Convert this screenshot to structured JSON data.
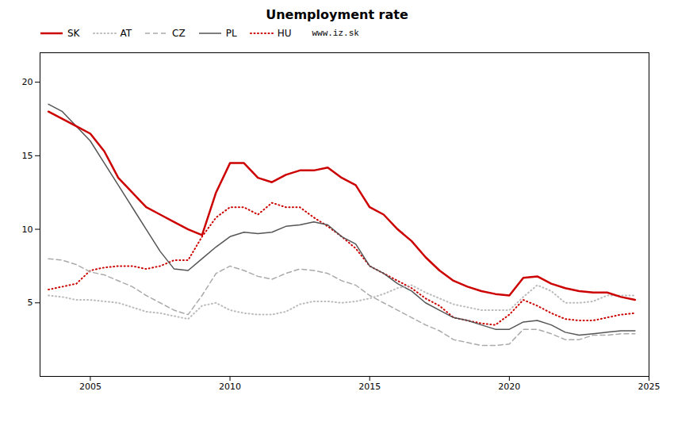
{
  "chart_data": {
    "type": "line",
    "title": "Unemployment rate",
    "annotations": [
      "www.iz.sk"
    ],
    "x": [
      2003.5,
      2004.0,
      2004.5,
      2005.0,
      2005.5,
      2006.0,
      2006.5,
      2007.0,
      2007.5,
      2008.0,
      2008.5,
      2009.0,
      2009.5,
      2010.0,
      2010.5,
      2011.0,
      2011.5,
      2012.0,
      2012.5,
      2013.0,
      2013.5,
      2014.0,
      2014.5,
      2015.0,
      2015.5,
      2016.0,
      2016.5,
      2017.0,
      2017.5,
      2018.0,
      2018.5,
      2019.0,
      2019.5,
      2020.0,
      2020.5,
      2021.0,
      2021.5,
      2022.0,
      2022.5,
      2023.0,
      2023.5,
      2024.0,
      2024.5
    ],
    "series": [
      {
        "name": "SK",
        "color": "#cc0000",
        "line_style": "solid",
        "values": [
          18.0,
          17.5,
          17.0,
          16.5,
          15.3,
          13.5,
          12.5,
          11.5,
          11.0,
          10.5,
          10.0,
          9.6,
          12.5,
          14.5,
          14.5,
          13.5,
          13.2,
          13.7,
          14.0,
          14.0,
          14.2,
          13.5,
          13.0,
          11.5,
          11.0,
          10.0,
          9.2,
          8.1,
          7.2,
          6.5,
          6.1,
          5.8,
          5.6,
          5.5,
          6.7,
          6.8,
          6.3,
          6.0,
          5.8,
          5.7,
          5.7,
          5.4,
          5.2
        ]
      },
      {
        "name": "AT",
        "color": "#bbbbbb",
        "line_style": "dotted",
        "values": [
          5.5,
          5.4,
          5.2,
          5.2,
          5.1,
          5.0,
          4.7,
          4.4,
          4.3,
          4.1,
          3.9,
          4.8,
          5.0,
          4.5,
          4.3,
          4.2,
          4.2,
          4.4,
          4.9,
          5.1,
          5.1,
          5.0,
          5.1,
          5.3,
          5.6,
          6.0,
          6.2,
          5.7,
          5.3,
          4.9,
          4.7,
          4.5,
          4.5,
          4.5,
          5.4,
          6.2,
          5.8,
          5.0,
          5.0,
          5.1,
          5.5,
          5.5,
          5.5
        ]
      },
      {
        "name": "CZ",
        "color": "#aaaaaa",
        "line_style": "dashed",
        "values": [
          8.0,
          7.9,
          7.6,
          7.1,
          6.9,
          6.5,
          6.1,
          5.5,
          5.0,
          4.5,
          4.2,
          5.5,
          7.0,
          7.5,
          7.2,
          6.8,
          6.6,
          7.0,
          7.3,
          7.2,
          7.0,
          6.5,
          6.2,
          5.5,
          5.0,
          4.5,
          4.0,
          3.5,
          3.1,
          2.5,
          2.3,
          2.1,
          2.1,
          2.2,
          3.2,
          3.2,
          2.9,
          2.5,
          2.5,
          2.8,
          2.8,
          2.9,
          2.9
        ]
      },
      {
        "name": "PL",
        "color": "#555555",
        "line_style": "solid",
        "values": [
          18.5,
          18.0,
          17.0,
          16.0,
          14.5,
          13.0,
          11.5,
          10.0,
          8.5,
          7.3,
          7.2,
          8.0,
          8.8,
          9.5,
          9.8,
          9.7,
          9.8,
          10.2,
          10.3,
          10.5,
          10.3,
          9.5,
          9.0,
          7.5,
          7.0,
          6.3,
          5.8,
          5.0,
          4.5,
          4.0,
          3.8,
          3.5,
          3.2,
          3.2,
          3.7,
          3.8,
          3.5,
          3.0,
          2.8,
          2.9,
          3.0,
          3.1,
          3.1
        ]
      },
      {
        "name": "HU",
        "color": "#cc0000",
        "line_style": "dotted",
        "values": [
          5.9,
          6.1,
          6.3,
          7.2,
          7.4,
          7.5,
          7.5,
          7.3,
          7.5,
          7.9,
          7.9,
          9.5,
          10.8,
          11.5,
          11.5,
          11.0,
          11.8,
          11.5,
          11.5,
          10.8,
          10.2,
          9.5,
          8.7,
          7.5,
          7.0,
          6.5,
          6.0,
          5.3,
          4.8,
          4.0,
          3.8,
          3.6,
          3.5,
          4.2,
          5.2,
          4.8,
          4.3,
          3.9,
          3.8,
          3.8,
          4.0,
          4.2,
          4.3
        ]
      }
    ],
    "xlim": [
      2003.2,
      2025.0
    ],
    "xticks": [
      2005,
      2010,
      2015,
      2020,
      2025
    ],
    "ylim": [
      0,
      22
    ],
    "yticks": [
      5,
      10,
      15,
      20
    ],
    "grid": false,
    "legend": "top"
  }
}
